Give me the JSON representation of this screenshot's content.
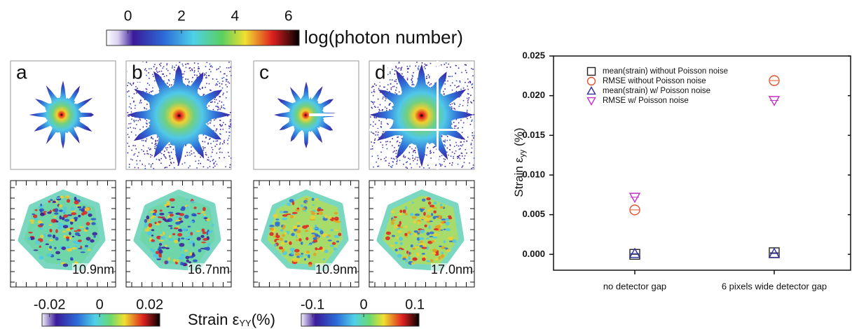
{
  "colorbar_top": {
    "label": "log(photon number)",
    "ticks": [
      0,
      2,
      4,
      6
    ],
    "lim": [
      -0.8,
      6.4
    ]
  },
  "panels": [
    {
      "letter": "a",
      "scale": "10.9nm"
    },
    {
      "letter": "b",
      "scale": "16.7nm"
    },
    {
      "letter": "c",
      "scale": "10.9nm"
    },
    {
      "letter": "d",
      "scale": "17.0nm"
    }
  ],
  "colorbar_strain_left": {
    "ticks": [
      -0.02,
      0,
      0.02
    ],
    "lim": [
      -0.023,
      0.024
    ]
  },
  "colorbar_strain_right": {
    "ticks": [
      -0.1,
      0,
      0.1
    ],
    "lim": [
      -0.122,
      0.108
    ]
  },
  "strain_label": {
    "text": "Strain ε",
    "sub": "YY",
    "unit": "(%)"
  },
  "chart_data": {
    "type": "scatter",
    "categories": [
      "no detector gap",
      "6 pixels wide detector gap"
    ],
    "y_label": {
      "text": "Strain ε",
      "sub": "yy",
      "unit": "(%)"
    },
    "ylim": [
      -0.002,
      0.025
    ],
    "yticks": [
      {
        "value": 0,
        "label": "0.000"
      },
      0.005,
      {
        "value": 0.01,
        "label": "0.010"
      },
      0.015,
      {
        "value": 0.02,
        "label": "0.020"
      },
      0.025
    ],
    "legend": "upper left",
    "series": [
      {
        "name": "mean(strain) without Poisson noise",
        "marker": "square",
        "color": "#222222",
        "values": [
          0.0,
          0.0002
        ]
      },
      {
        "name": "RMSE without Poisson noise",
        "marker": "circle",
        "color": "#e8502a",
        "values": [
          0.0056,
          0.0219
        ]
      },
      {
        "name": "mean(strain) w/ Poisson noise",
        "marker": "triangle-up",
        "color": "#2b2ba0",
        "values": [
          0.0001,
          0.0001
        ]
      },
      {
        "name": "RMSE w/ Poisson noise",
        "marker": "triangle-down",
        "color": "#c032c8",
        "values": [
          0.0072,
          0.0194
        ]
      }
    ]
  }
}
